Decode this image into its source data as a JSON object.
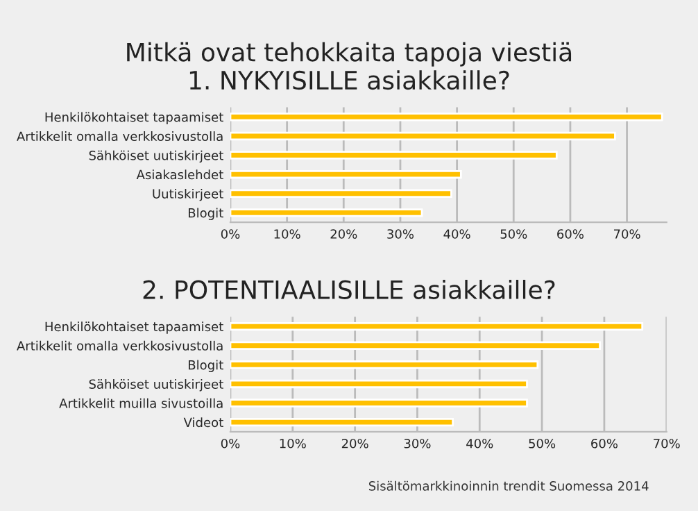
{
  "chart_data": [
    {
      "type": "bar",
      "orientation": "horizontal",
      "title": "Mitkä ovat tehokkaita tapoja viestiä\n1. NYKYISILLE asiakkaille?",
      "categories": [
        "Henkilökohtaiset tapaamiset",
        "Artikkelit omalla verkkosivustolla",
        "Sähköiset uutiskirjeet",
        "Asiakaslehdet",
        "Uutiskirjeet",
        "Blogit"
      ],
      "values": [
        76.2,
        67.9,
        57.6,
        40.7,
        39.0,
        33.8
      ],
      "color": "#ffc000",
      "xlim": [
        0,
        77
      ],
      "xticks": [
        {
          "value": 0,
          "label": "0%"
        },
        {
          "value": 10,
          "label": "10%"
        },
        {
          "value": 20,
          "label": "20%"
        },
        {
          "value": 30,
          "label": "30%"
        },
        {
          "value": 40,
          "label": "40%"
        },
        {
          "value": 50,
          "label": "50%"
        },
        {
          "value": 60,
          "label": "60%"
        },
        {
          "value": 70,
          "label": "70%"
        }
      ],
      "grid": "x"
    },
    {
      "type": "bar",
      "orientation": "horizontal",
      "title": "2. POTENTIAALISILLE asiakkaille?",
      "categories": [
        "Henkilökohtaiset tapaamiset",
        "Artikkelit omalla verkkosivustolla",
        "Blogit",
        "Sähköiset uutiskirjeet",
        "Artikkelit muilla sivustoilla",
        "Videot"
      ],
      "values": [
        66.1,
        59.3,
        49.3,
        47.6,
        47.6,
        35.7
      ],
      "color": "#ffc000",
      "xlim": [
        0,
        70
      ],
      "xticks": [
        {
          "value": 0,
          "label": "0%"
        },
        {
          "value": 10,
          "label": "10%"
        },
        {
          "value": 20,
          "label": "20%"
        },
        {
          "value": 30,
          "label": "30%"
        },
        {
          "value": 40,
          "label": "40%"
        },
        {
          "value": 50,
          "label": "50%"
        },
        {
          "value": 60,
          "label": "60%"
        },
        {
          "value": 70,
          "label": "70%"
        }
      ],
      "grid": "x",
      "annotations": [
        "Sisältömarkkinoinnin trendit Suomessa 2014"
      ]
    }
  ]
}
